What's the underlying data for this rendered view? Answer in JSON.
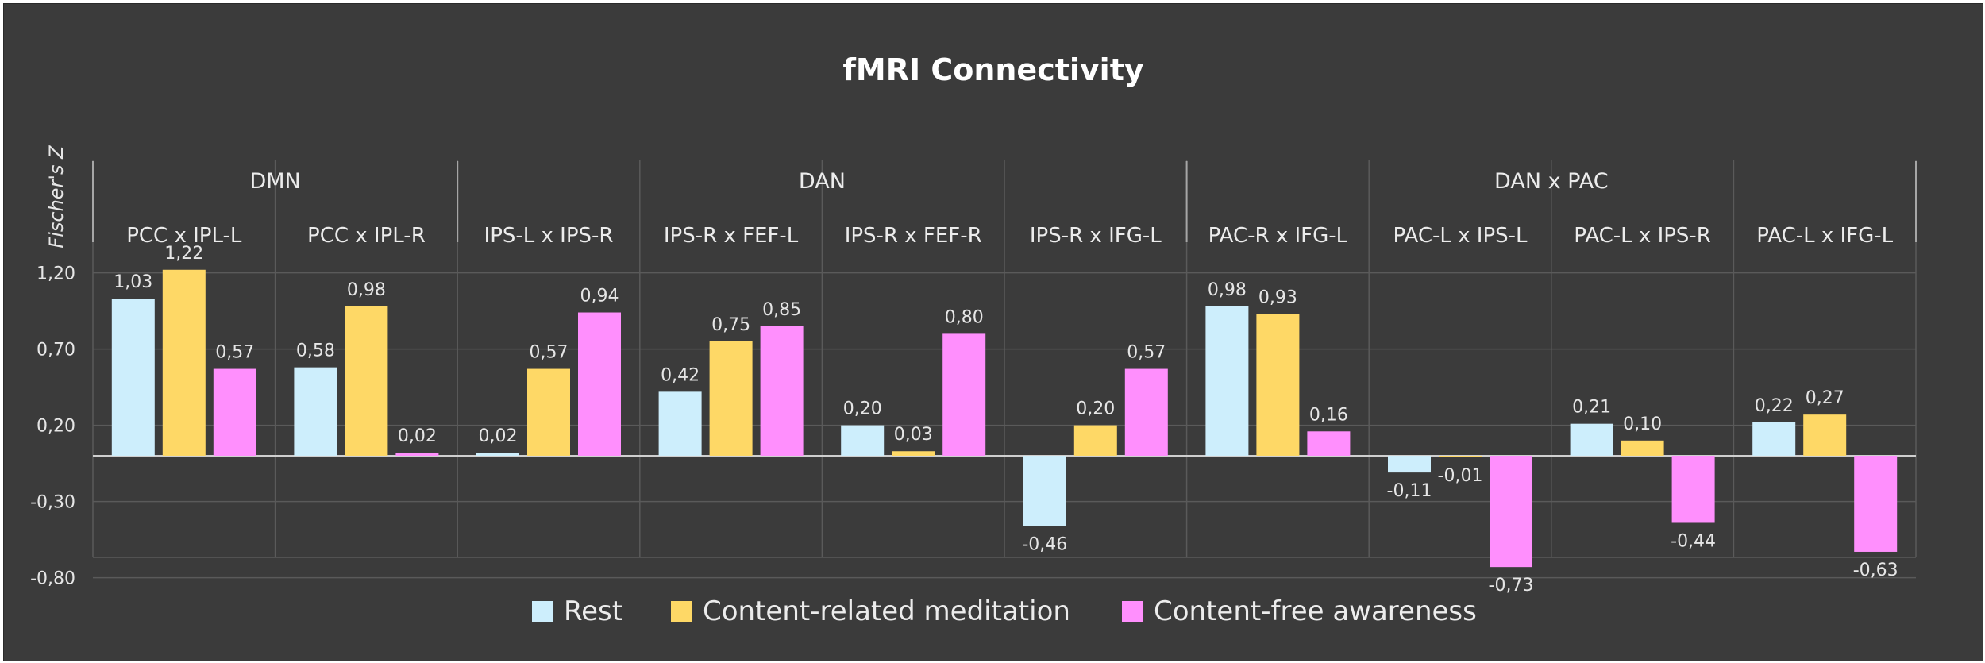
{
  "chart_data": {
    "type": "bar",
    "title": "fMRI Connectivity",
    "ylabel": "Fischer's Z",
    "xlabel": "",
    "ylim": [
      -0.8,
      1.45
    ],
    "yticks": [
      -0.8,
      -0.3,
      0.2,
      0.7,
      1.2
    ],
    "ytick_labels": [
      "-0,80",
      "-0,30",
      "0,20",
      "0,70",
      "1,20"
    ],
    "grid": true,
    "legend_position": "bottom",
    "groups": [
      {
        "label": "DMN",
        "categories": [
          "PCC x IPL-L",
          "PCC x IPL-R"
        ]
      },
      {
        "label": "DAN",
        "categories": [
          "IPS-L x IPS-R",
          "IPS-R x FEF-L",
          "IPS-R x FEF-R",
          "IPS-R x IFG-L"
        ]
      },
      {
        "label": "DAN x PAC",
        "categories": [
          "PAC-R x IFG-L",
          "PAC-L x IPS-L",
          "PAC-L x IPS-R",
          "PAC-L x IFG-L"
        ]
      }
    ],
    "categories": [
      "PCC x IPL-L",
      "PCC x IPL-R",
      "IPS-L x IPS-R",
      "IPS-R x FEF-L",
      "IPS-R x FEF-R",
      "IPS-R x IFG-L",
      "PAC-R x IFG-L",
      "PAC-L x IPS-L",
      "PAC-L x IPS-R",
      "PAC-L x IFG-L"
    ],
    "series": [
      {
        "name": "Rest",
        "color": "#cdeefc",
        "values": [
          1.03,
          0.58,
          0.02,
          0.42,
          0.2,
          -0.46,
          0.98,
          -0.11,
          0.21,
          0.22
        ],
        "labels": [
          "1,03",
          "0,58",
          "0,02",
          "0,42",
          "0,20",
          "-0,46",
          "0,98",
          "-0,11",
          "0,21",
          "0,22"
        ]
      },
      {
        "name": "Content-related meditation",
        "color": "#fed866",
        "values": [
          1.22,
          0.98,
          0.57,
          0.75,
          0.03,
          0.2,
          0.93,
          -0.01,
          0.1,
          0.27
        ],
        "labels": [
          "1,22",
          "0,98",
          "0,57",
          "0,75",
          "0,03",
          "0,20",
          "0,93",
          "-0,01",
          "0,10",
          "0,27"
        ]
      },
      {
        "name": "Content-free awareness",
        "color": "#ff8ffd",
        "values": [
          0.57,
          0.02,
          0.94,
          0.85,
          0.8,
          0.57,
          0.16,
          -0.73,
          -0.44,
          -0.63
        ],
        "labels": [
          "0,57",
          "0,02",
          "0,94",
          "0,85",
          "0,80",
          "0,57",
          "0,16",
          "-0,73",
          "-0,44",
          "-0,63"
        ]
      }
    ]
  },
  "colors": {
    "background": "#3b3b3b",
    "grid": "#5a5a5a",
    "header_lines": "#a6a6a6",
    "axis_zero": "#cfcfcf"
  }
}
